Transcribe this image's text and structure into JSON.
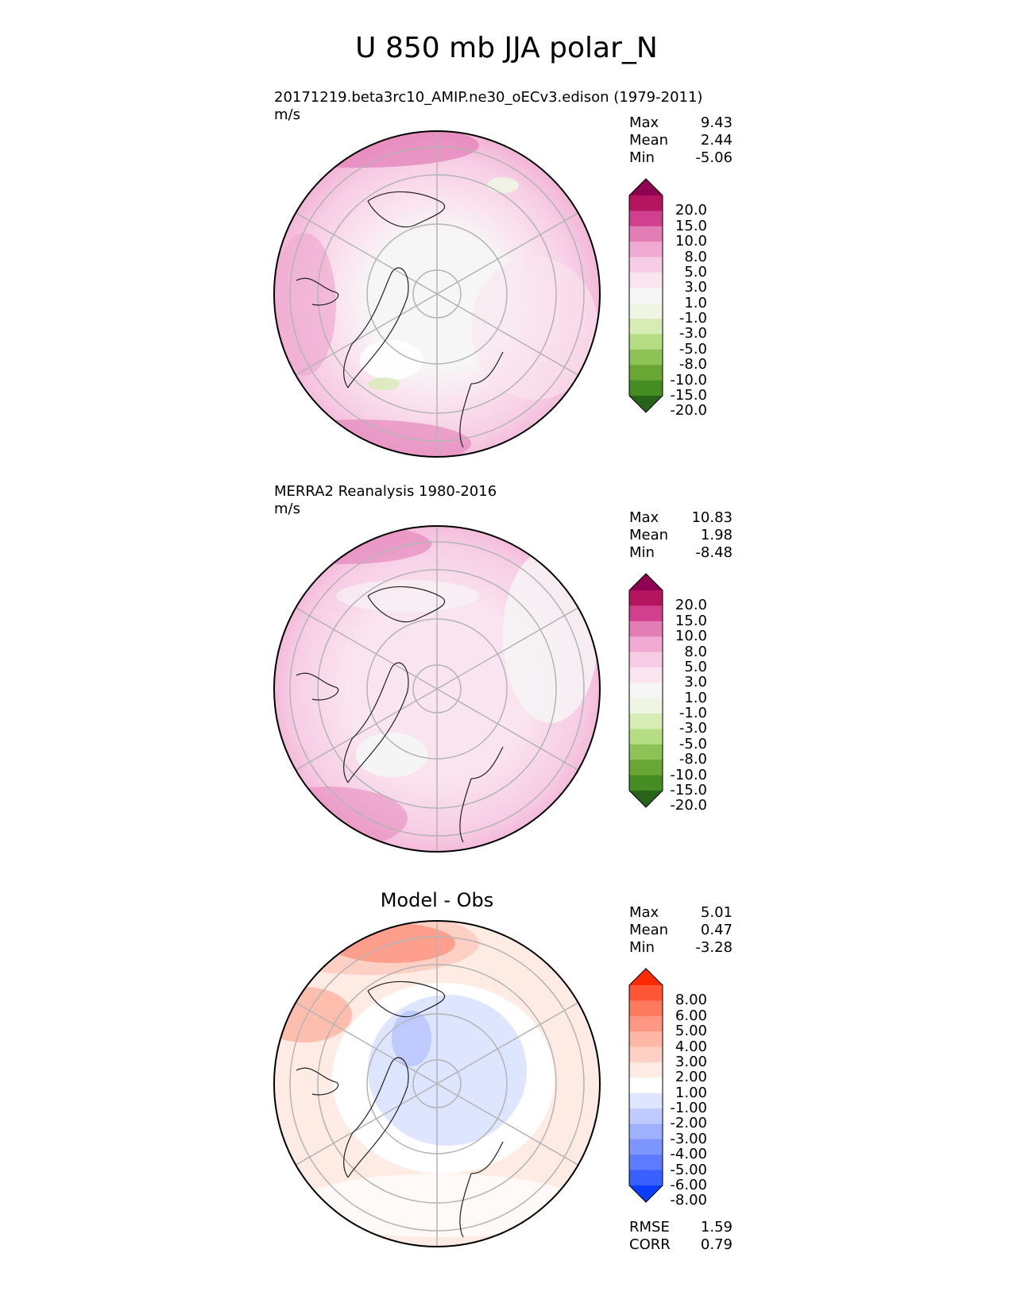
{
  "title": "U 850 mb JJA polar_N",
  "panels": [
    {
      "label": "20171219.beta3rc10_AMIP.ne30_oECv3.edison (1979-2011)",
      "units": "m/s",
      "stats": [
        {
          "name": "Max",
          "value": "9.43"
        },
        {
          "name": "Mean",
          "value": "2.44"
        },
        {
          "name": "Min",
          "value": "-5.06"
        }
      ],
      "colorbar": {
        "levels": [
          "20.0",
          "15.0",
          "10.0",
          "8.0",
          "5.0",
          "3.0",
          "1.0",
          "-1.0",
          "-3.0",
          "-5.0",
          "-8.0",
          "-10.0",
          "-15.0",
          "-20.0"
        ],
        "colors": [
          "#8e0152",
          "#b5145f",
          "#d0408e",
          "#e27db6",
          "#f0a9d0",
          "#f7cde5",
          "#fae4ef",
          "#f6f6f6",
          "#eef5e2",
          "#d5ecb5",
          "#b4dd84",
          "#8dc356",
          "#6aa633",
          "#458d23",
          "#276419"
        ]
      }
    },
    {
      "label": "MERRA2 Reanalysis 1980-2016",
      "units": "m/s",
      "stats": [
        {
          "name": "Max",
          "value": "10.83"
        },
        {
          "name": "Mean",
          "value": "1.98"
        },
        {
          "name": "Min",
          "value": "-8.48"
        }
      ],
      "colorbar": {
        "levels": [
          "20.0",
          "15.0",
          "10.0",
          "8.0",
          "5.0",
          "3.0",
          "1.0",
          "-1.0",
          "-3.0",
          "-5.0",
          "-8.0",
          "-10.0",
          "-15.0",
          "-20.0"
        ],
        "colors": [
          "#8e0152",
          "#b5145f",
          "#d0408e",
          "#e27db6",
          "#f0a9d0",
          "#f7cde5",
          "#fae4ef",
          "#f6f6f6",
          "#eef5e2",
          "#d5ecb5",
          "#b4dd84",
          "#8dc356",
          "#6aa633",
          "#458d23",
          "#276419"
        ]
      }
    },
    {
      "label": "Model - Obs",
      "units": "",
      "stats": [
        {
          "name": "Max",
          "value": "5.01"
        },
        {
          "name": "Mean",
          "value": "0.47"
        },
        {
          "name": "Min",
          "value": "-3.28"
        }
      ],
      "extra_stats": [
        {
          "name": "RMSE",
          "value": "1.59"
        },
        {
          "name": "CORR",
          "value": "0.79"
        }
      ],
      "colorbar": {
        "levels": [
          "8.00",
          "6.00",
          "5.00",
          "4.00",
          "3.00",
          "2.00",
          "1.00",
          "-1.00",
          "-2.00",
          "-3.00",
          "-4.00",
          "-5.00",
          "-6.00",
          "-8.00"
        ],
        "colors": [
          "#fe2a05",
          "#fe5536",
          "#fd7a5e",
          "#fd9683",
          "#feb6a5",
          "#fed0c3",
          "#feebe4",
          "#ffffff",
          "#dee5ff",
          "#bfcbff",
          "#9eb0ff",
          "#7d95ff",
          "#5c7bff",
          "#3a5fff",
          "#0a3dff"
        ]
      }
    }
  ],
  "chart_data": [
    {
      "type": "heatmap",
      "projection": "north polar stereographic",
      "title": "20171219.beta3rc10_AMIP.ne30_oECv3.edison (1979-2011)",
      "units": "m/s",
      "max": 9.43,
      "mean": 2.44,
      "min": -5.06,
      "contour_levels": [
        -20,
        -15,
        -10,
        -8,
        -5,
        -3,
        -1,
        1,
        3,
        5,
        8,
        10,
        15,
        20
      ]
    },
    {
      "type": "heatmap",
      "projection": "north polar stereographic",
      "title": "MERRA2 Reanalysis 1980-2016",
      "units": "m/s",
      "max": 10.83,
      "mean": 1.98,
      "min": -8.48,
      "contour_levels": [
        -20,
        -15,
        -10,
        -8,
        -5,
        -3,
        -1,
        1,
        3,
        5,
        8,
        10,
        15,
        20
      ]
    },
    {
      "type": "heatmap",
      "projection": "north polar stereographic",
      "title": "Model - Obs",
      "max": 5.01,
      "mean": 0.47,
      "min": -3.28,
      "rmse": 1.59,
      "corr": 0.79,
      "contour_levels": [
        -8,
        -6,
        -5,
        -4,
        -3,
        -2,
        -1,
        1,
        2,
        3,
        4,
        5,
        6,
        8
      ]
    }
  ]
}
